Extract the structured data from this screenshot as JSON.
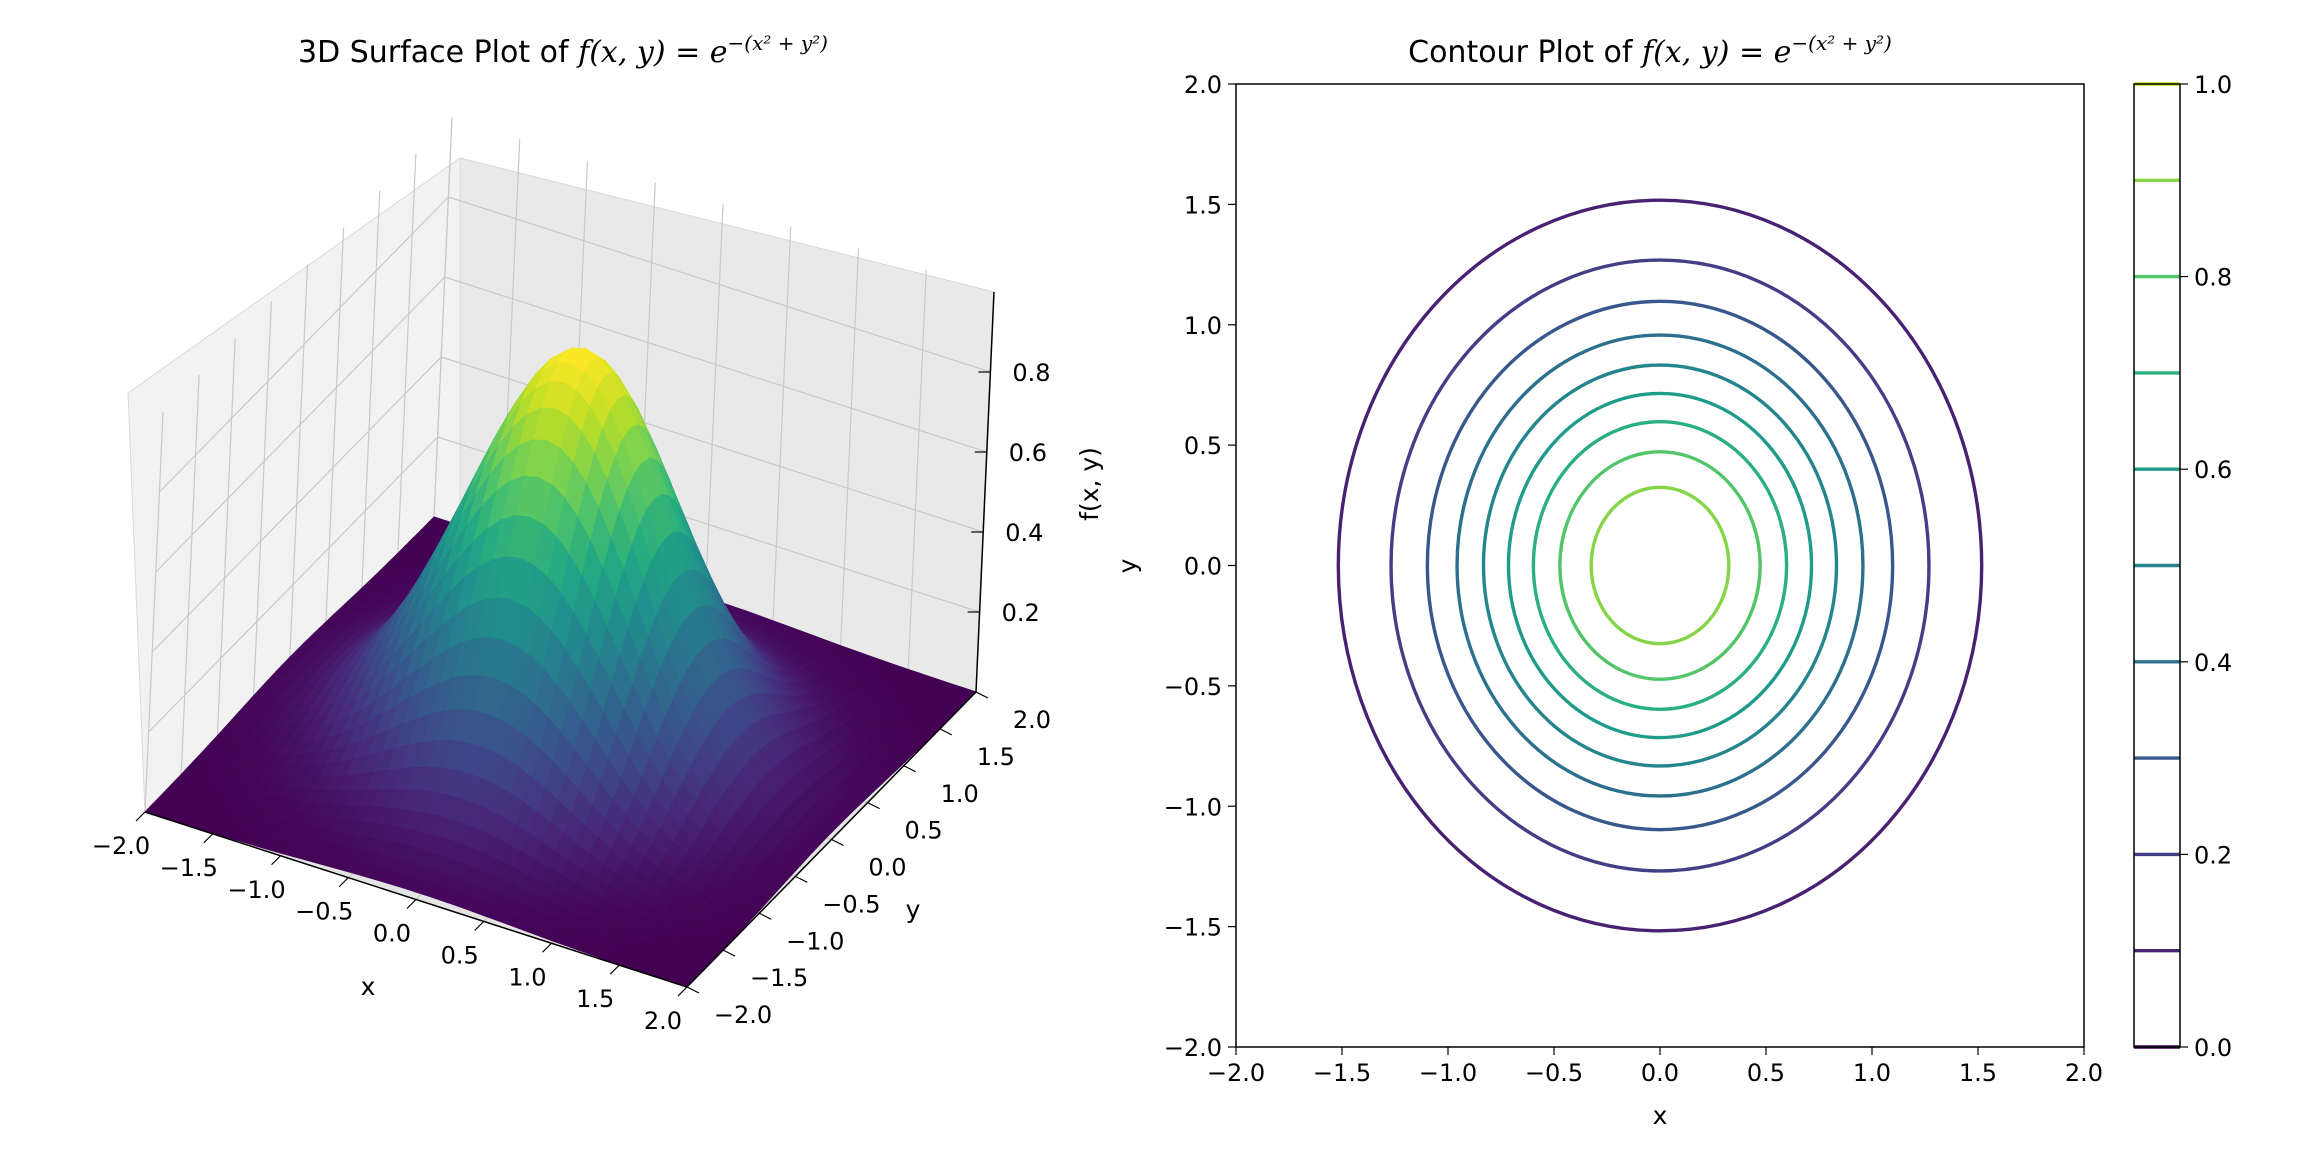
{
  "chart_data": [
    {
      "type": "surface3d",
      "title_prefix": "3D Surface Plot of ",
      "title_formula": "f(x, y) = e",
      "title_exponent": "−(x² + y²)",
      "xlabel": "x",
      "ylabel": "y",
      "zlabel": "f(x, y)",
      "xlim": [
        -2.0,
        2.0
      ],
      "ylim": [
        -2.0,
        2.0
      ],
      "zlim": [
        0.0,
        1.0
      ],
      "x_ticks": [
        "−2.0",
        "−1.5",
        "−1.0",
        "−0.5",
        "0.0",
        "0.5",
        "1.0",
        "1.5",
        "2.0"
      ],
      "y_ticks": [
        "−2.0",
        "−1.5",
        "−1.0",
        "−0.5",
        "0.0",
        "0.5",
        "1.0",
        "1.5",
        "2.0"
      ],
      "z_ticks": [
        "0.2",
        "0.4",
        "0.6",
        "0.8"
      ],
      "z_tick_values": [
        0.2,
        0.4,
        0.6,
        0.8
      ],
      "colormap": "viridis",
      "grid": true,
      "pane_color": "#f2f2f2"
    },
    {
      "type": "contour",
      "title_prefix": "Contour Plot of ",
      "title_formula": "f(x, y) = e",
      "title_exponent": "−(x² + y²)",
      "xlabel": "x",
      "ylabel": "y",
      "xlim": [
        -2.0,
        2.0
      ],
      "ylim": [
        -2.0,
        2.0
      ],
      "x_ticks": [
        "−2.0",
        "−1.5",
        "−1.0",
        "−0.5",
        "0.0",
        "0.5",
        "1.0",
        "1.5",
        "2.0"
      ],
      "y_ticks": [
        "−2.0",
        "−1.5",
        "−1.0",
        "−0.5",
        "0.0",
        "0.5",
        "1.0",
        "1.5",
        "2.0"
      ],
      "levels": [
        0.1,
        0.2,
        0.3,
        0.4,
        0.5,
        0.6,
        0.7,
        0.8,
        0.9
      ],
      "level_colors": [
        "#482173",
        "#433e85",
        "#38588c",
        "#2d708e",
        "#25858e",
        "#1e9b8a",
        "#2ab07f",
        "#52c569",
        "#86d549"
      ],
      "colormap": "viridis",
      "grid": false,
      "colorbar": {
        "placement": "right",
        "range": [
          0.0,
          1.0
        ],
        "ticks": [
          "0.0",
          "0.2",
          "0.4",
          "0.6",
          "0.8",
          "1.0"
        ],
        "tick_values": [
          0.0,
          0.2,
          0.4,
          0.6,
          0.8,
          1.0
        ],
        "line_levels": [
          0.0,
          0.1,
          0.2,
          0.3,
          0.4,
          0.5,
          0.6,
          0.7,
          0.8,
          0.9,
          1.0
        ],
        "line_colors": [
          "#440154",
          "#482173",
          "#433e85",
          "#38588c",
          "#2d708e",
          "#25858e",
          "#1e9b8a",
          "#2ab07f",
          "#52c569",
          "#86d549",
          "#c2df23"
        ]
      }
    }
  ]
}
